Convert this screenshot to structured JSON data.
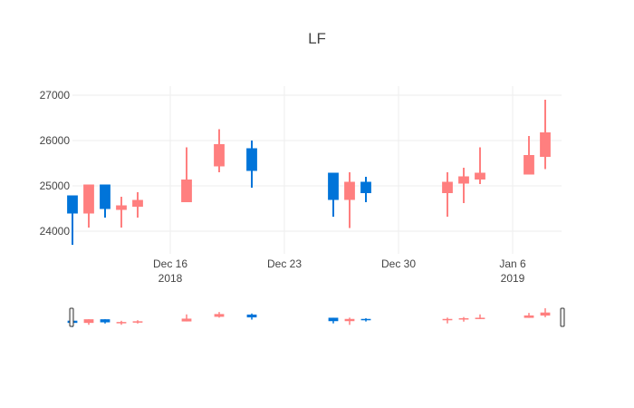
{
  "chart_data": {
    "type": "candlestick",
    "title": "LF",
    "xlabel": "",
    "ylabel": "",
    "x_range": [
      "2018-12-10",
      "2019-01-09"
    ],
    "ylim": [
      23500,
      27200
    ],
    "y_ticks": [
      24000,
      25000,
      26000,
      27000
    ],
    "y_tick_labels": [
      "24000",
      "25000",
      "26000",
      "27000"
    ],
    "x_ticks": [
      {
        "date": "2018-12-16",
        "line1": "Dec 16",
        "line2": "2018"
      },
      {
        "date": "2018-12-23",
        "line1": "Dec 23",
        "line2": ""
      },
      {
        "date": "2018-12-30",
        "line1": "Dec 30",
        "line2": ""
      },
      {
        "date": "2019-01-06",
        "line1": "Jan 6",
        "line2": "2019"
      }
    ],
    "grid": true,
    "legend": "none",
    "increasing_color": "#ff7f7f",
    "decreasing_color": "#0074d9",
    "range_slider": true,
    "candles": [
      {
        "date": "2018-12-10",
        "open": 24780,
        "high": 24780,
        "low": 23700,
        "close": 24400
      },
      {
        "date": "2018-12-11",
        "open": 24400,
        "high": 25030,
        "low": 24080,
        "close": 25020
      },
      {
        "date": "2018-12-12",
        "open": 25020,
        "high": 25030,
        "low": 24300,
        "close": 24500
      },
      {
        "date": "2018-12-13",
        "open": 24480,
        "high": 24760,
        "low": 24080,
        "close": 24560
      },
      {
        "date": "2018-12-14",
        "open": 24550,
        "high": 24860,
        "low": 24300,
        "close": 24680
      },
      {
        "date": "2018-12-17",
        "open": 24650,
        "high": 25850,
        "low": 24650,
        "close": 25130
      },
      {
        "date": "2018-12-19",
        "open": 25440,
        "high": 26250,
        "low": 25300,
        "close": 25910
      },
      {
        "date": "2018-12-21",
        "open": 25820,
        "high": 26000,
        "low": 24960,
        "close": 25340
      },
      {
        "date": "2018-12-26",
        "open": 25280,
        "high": 25280,
        "low": 24320,
        "close": 24700
      },
      {
        "date": "2018-12-27",
        "open": 24700,
        "high": 25300,
        "low": 24070,
        "close": 25080
      },
      {
        "date": "2018-12-28",
        "open": 25080,
        "high": 25200,
        "low": 24640,
        "close": 24850
      },
      {
        "date": "2019-01-02",
        "open": 24850,
        "high": 25300,
        "low": 24320,
        "close": 25080
      },
      {
        "date": "2019-01-03",
        "open": 25060,
        "high": 25400,
        "low": 24620,
        "close": 25200
      },
      {
        "date": "2019-01-04",
        "open": 25150,
        "high": 25850,
        "low": 25040,
        "close": 25280
      },
      {
        "date": "2019-01-07",
        "open": 25260,
        "high": 26100,
        "low": 25260,
        "close": 25670
      },
      {
        "date": "2019-01-08",
        "open": 25650,
        "high": 26900,
        "low": 25370,
        "close": 26170
      }
    ]
  }
}
